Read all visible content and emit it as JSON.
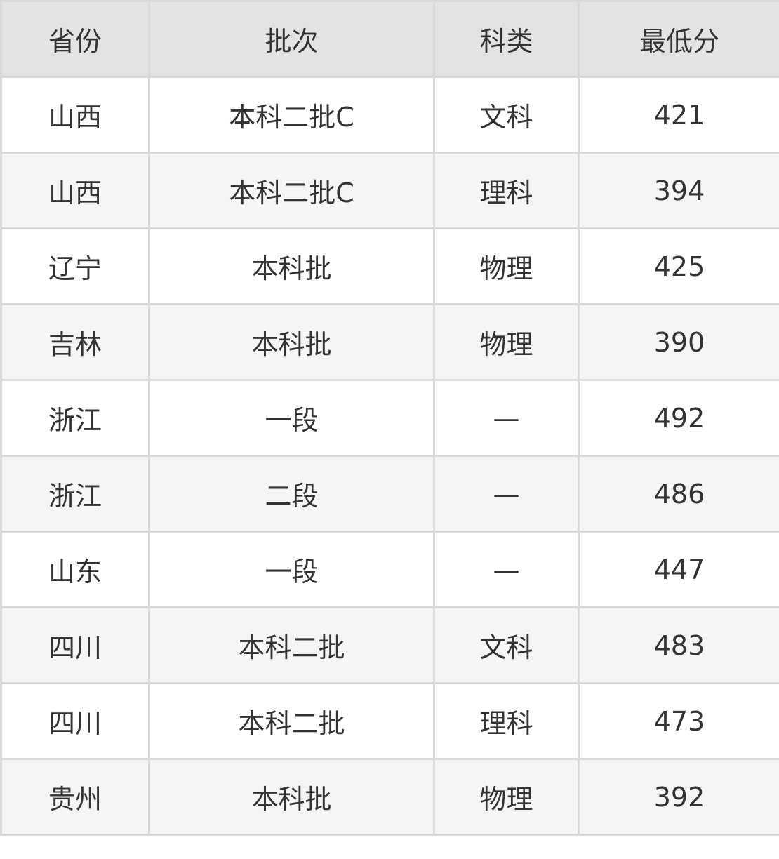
{
  "table": {
    "headers": [
      "省份",
      "批次",
      "科类",
      "最低分"
    ],
    "rows": [
      [
        "山西",
        "本科二批C",
        "文科",
        "421"
      ],
      [
        "山西",
        "本科二批C",
        "理科",
        "394"
      ],
      [
        "辽宁",
        "本科批",
        "物理",
        "425"
      ],
      [
        "吉林",
        "本科批",
        "物理",
        "390"
      ],
      [
        "浙江",
        "一段",
        "—",
        "492"
      ],
      [
        "浙江",
        "二段",
        "—",
        "486"
      ],
      [
        "山东",
        "一段",
        "—",
        "447"
      ],
      [
        "四川",
        "本科二批",
        "文科",
        "483"
      ],
      [
        "四川",
        "本科二批",
        "理科",
        "473"
      ],
      [
        "贵州",
        "本科批",
        "物理",
        "392"
      ]
    ]
  },
  "colors": {
    "header_bg": "#e3e3e3",
    "stripe_bg": "#f5f5f5",
    "border": "#d9d9d9",
    "text": "#333333"
  }
}
